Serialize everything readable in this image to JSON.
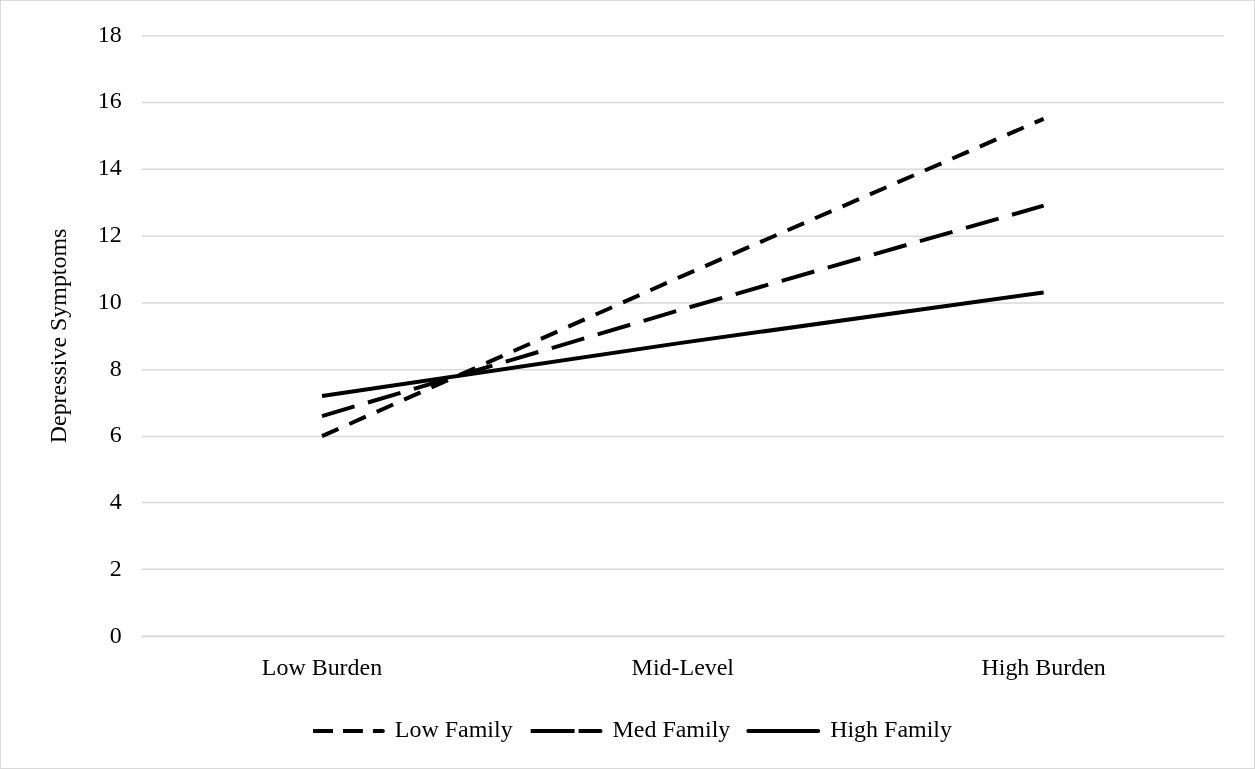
{
  "chart_data": {
    "type": "line",
    "ylabel": "Depressive Symptoms",
    "categories": [
      "Low Burden",
      "Mid-Level",
      "High Burden"
    ],
    "series": [
      {
        "name": "Low Family",
        "color": "#000000",
        "line_style": "dashed",
        "values": [
          6.0,
          10.8,
          15.5
        ]
      },
      {
        "name": "Med Family",
        "color": "#000000",
        "line_style": "dashed",
        "values": [
          6.6,
          9.8,
          12.9
        ]
      },
      {
        "name": "High Family",
        "color": "#000000",
        "line_style": "solid",
        "values": [
          7.2,
          8.8,
          10.3
        ]
      }
    ],
    "ylim": [
      0,
      18
    ],
    "yticks": [
      0,
      2,
      4,
      6,
      8,
      10,
      12,
      14,
      16,
      18
    ],
    "grid": "y",
    "legend": "bottom",
    "marker": "none"
  }
}
